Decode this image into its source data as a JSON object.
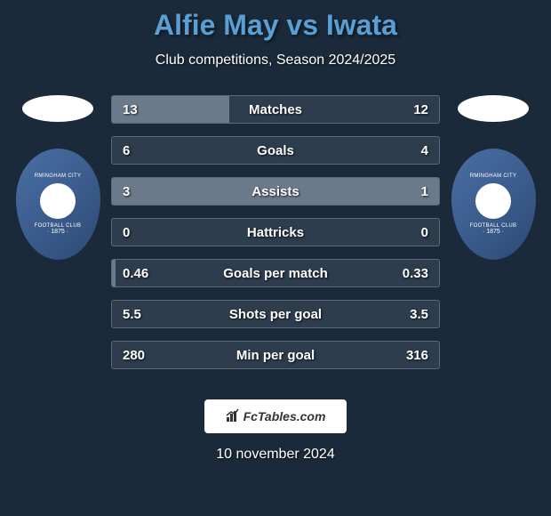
{
  "header": {
    "title": "Alfie May vs Iwata",
    "subtitle": "Club competitions, Season 2024/2025"
  },
  "players": {
    "left": {
      "flag_color": "#ffffff",
      "crest_text": "RMINGHAM CITY",
      "crest_text2": "FOOTBALL CLUB",
      "crest_year": "· 1875 ·"
    },
    "right": {
      "flag_color": "#ffffff",
      "crest_text": "RMINGHAM CITY",
      "crest_text2": "FOOTBALL CLUB",
      "crest_year": "· 1875 ·"
    }
  },
  "stats": [
    {
      "label": "Matches",
      "left_value": "13",
      "right_value": "12",
      "left_fill_pct": 36,
      "right_fill_pct": 0
    },
    {
      "label": "Goals",
      "left_value": "6",
      "right_value": "4",
      "left_fill_pct": 0,
      "right_fill_pct": 0
    },
    {
      "label": "Assists",
      "left_value": "3",
      "right_value": "1",
      "left_fill_pct": 66,
      "right_fill_pct": 34
    },
    {
      "label": "Hattricks",
      "left_value": "0",
      "right_value": "0",
      "left_fill_pct": 0,
      "right_fill_pct": 0
    },
    {
      "label": "Goals per match",
      "left_value": "0.46",
      "right_value": "0.33",
      "left_fill_pct": 1,
      "right_fill_pct": 0
    },
    {
      "label": "Shots per goal",
      "left_value": "5.5",
      "right_value": "3.5",
      "left_fill_pct": 0,
      "right_fill_pct": 0
    },
    {
      "label": "Min per goal",
      "left_value": "280",
      "right_value": "316",
      "left_fill_pct": 0,
      "right_fill_pct": 0
    }
  ],
  "footer": {
    "logo_text": "FcTables.com",
    "date": "10 november 2024"
  },
  "colors": {
    "background": "#1a2a3a",
    "title_color": "#5a9fd4",
    "row_bg": "#2d3d4d",
    "row_border": "#5a6a7a",
    "fill_color": "#6a7a8a"
  }
}
